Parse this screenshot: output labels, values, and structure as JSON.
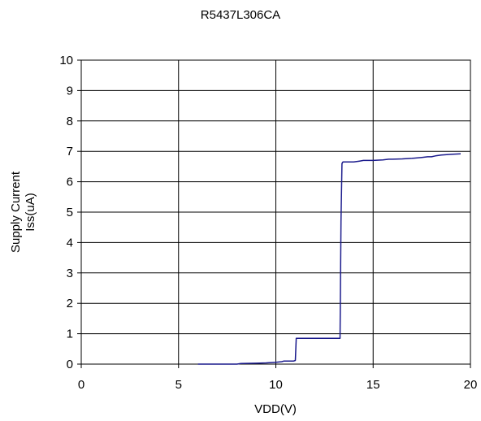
{
  "chart_data": {
    "type": "line",
    "title": "R5437L306CA",
    "xlabel": "VDD(V)",
    "ylabel": [
      "Supply Current",
      "Iss(uA)"
    ],
    "xlim": [
      0,
      20
    ],
    "ylim": [
      0,
      10
    ],
    "xticks": [
      0,
      5,
      10,
      15,
      20
    ],
    "yticks": [
      0,
      1,
      2,
      3,
      4,
      5,
      6,
      7,
      8,
      9,
      10
    ],
    "grid": true,
    "legend": "none",
    "series": [
      {
        "color": "#1a1a8c",
        "x": [
          6.0,
          7.0,
          8.0,
          8.2,
          9.0,
          9.5,
          10.0,
          10.3,
          10.4,
          10.9,
          11.0,
          11.05,
          11.1,
          13.3,
          13.35,
          13.4,
          13.45,
          14.0,
          14.3,
          14.5,
          15.0,
          15.5,
          15.8,
          16.0,
          16.5,
          17.0,
          17.5,
          17.8,
          18.0,
          18.2,
          18.5,
          19.0,
          19.5
        ],
        "y": [
          0.0,
          0.0,
          0.0,
          0.02,
          0.03,
          0.04,
          0.06,
          0.08,
          0.1,
          0.1,
          0.12,
          0.85,
          0.85,
          0.85,
          4.7,
          6.6,
          6.65,
          6.65,
          6.68,
          6.7,
          6.7,
          6.72,
          6.74,
          6.74,
          6.75,
          6.77,
          6.8,
          6.82,
          6.82,
          6.85,
          6.88,
          6.9,
          6.92
        ]
      }
    ]
  }
}
